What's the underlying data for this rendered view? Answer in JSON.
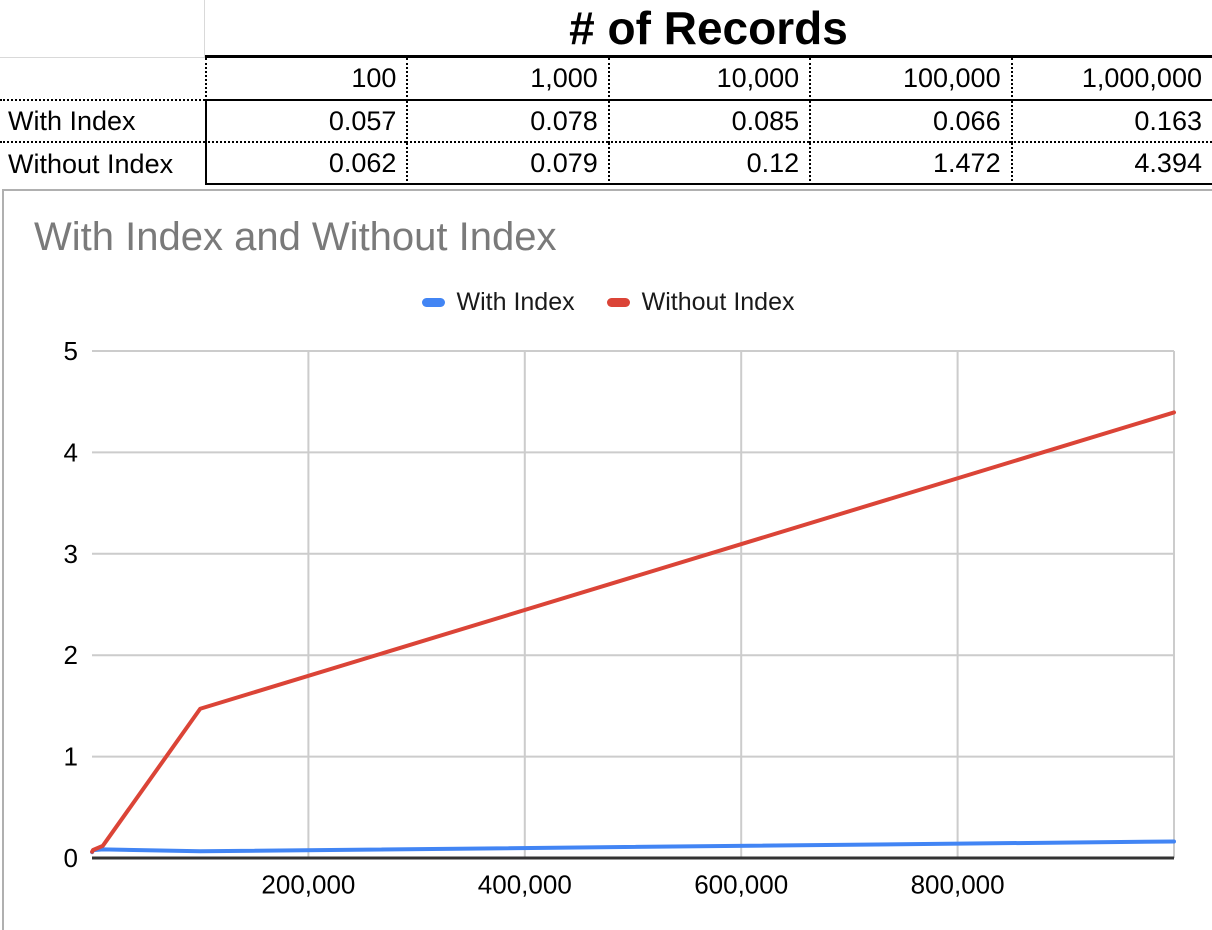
{
  "table": {
    "title": "# of Records",
    "columns": [
      "100",
      "1,000",
      "10,000",
      "100,000",
      "1,000,000"
    ],
    "rows": [
      {
        "label": "With Index",
        "values": [
          "0.057",
          "0.078",
          "0.085",
          "0.066",
          "0.163"
        ]
      },
      {
        "label": "Without Index",
        "values": [
          "0.062",
          "0.079",
          "0.12",
          "1.472",
          "4.394"
        ]
      }
    ]
  },
  "chart": {
    "title": "With Index and Without Index",
    "title_color": "#7a7a7a",
    "legend": [
      {
        "label": "With Index",
        "color": "#4285f4"
      },
      {
        "label": "Without Index",
        "color": "#db4437"
      }
    ]
  },
  "chart_data": {
    "type": "line",
    "title": "With Index and Without Index",
    "x": [
      100,
      1000,
      10000,
      100000,
      1000000
    ],
    "series": [
      {
        "name": "With Index",
        "color": "#4285f4",
        "values": [
          0.057,
          0.078,
          0.085,
          0.066,
          0.163
        ]
      },
      {
        "name": "Without Index",
        "color": "#db4437",
        "values": [
          0.062,
          0.079,
          0.12,
          1.472,
          4.394
        ]
      }
    ],
    "xlabel": "",
    "ylabel": "",
    "xlim": [
      0,
      1000000
    ],
    "ylim": [
      0,
      5
    ],
    "x_ticks": [
      200000,
      400000,
      600000,
      800000,
      1000000
    ],
    "x_tick_labels": [
      "200,000",
      "400,000",
      "600,000",
      "800,000",
      ""
    ],
    "y_ticks": [
      0,
      1,
      2,
      3,
      4,
      5
    ],
    "grid": true,
    "legend_position": "top",
    "grid_color": "#cccccc",
    "axis_color": "#333333"
  }
}
